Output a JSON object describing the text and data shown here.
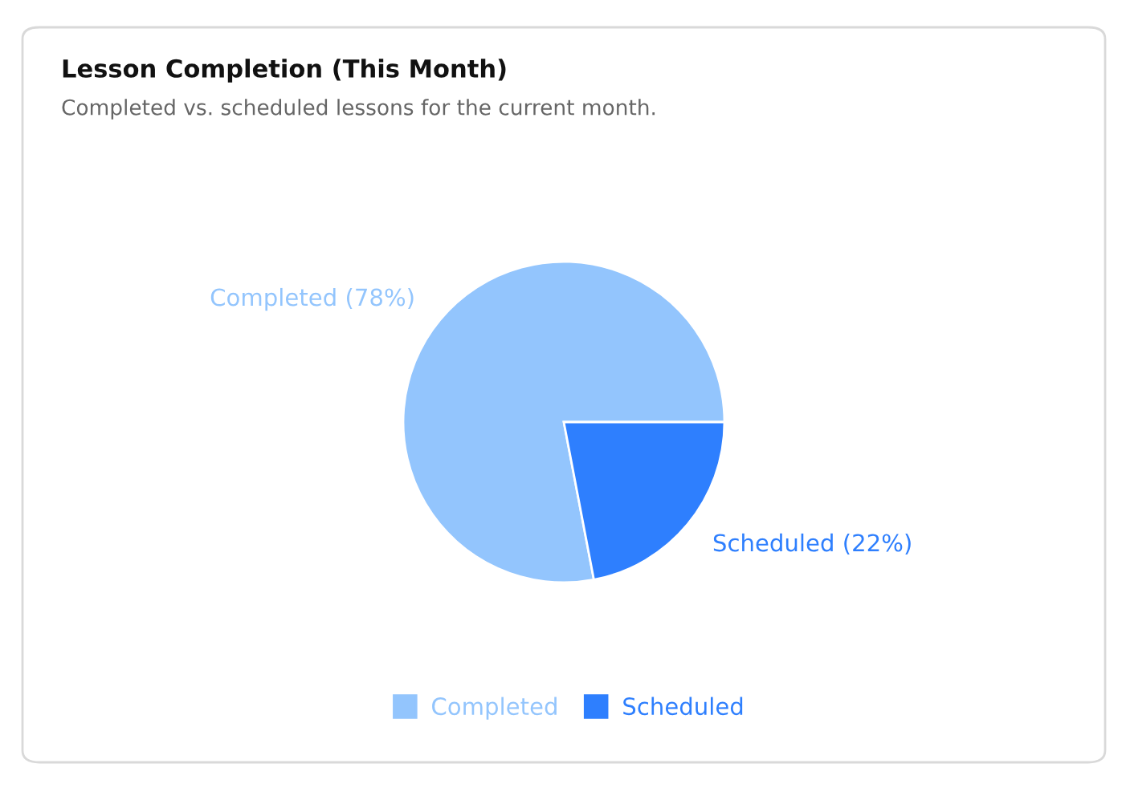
{
  "chart_data": {
    "type": "pie",
    "title": "Lesson Completion (This Month)",
    "subtitle": "Completed vs. scheduled lessons for the current month.",
    "categories": [
      "Completed",
      "Scheduled"
    ],
    "values": [
      78,
      22
    ],
    "colors": [
      "#93c5fd",
      "#2e7ffe"
    ],
    "value_labels": [
      "Completed (78%)",
      "Scheduled (22%)"
    ],
    "legend": "bottom"
  }
}
